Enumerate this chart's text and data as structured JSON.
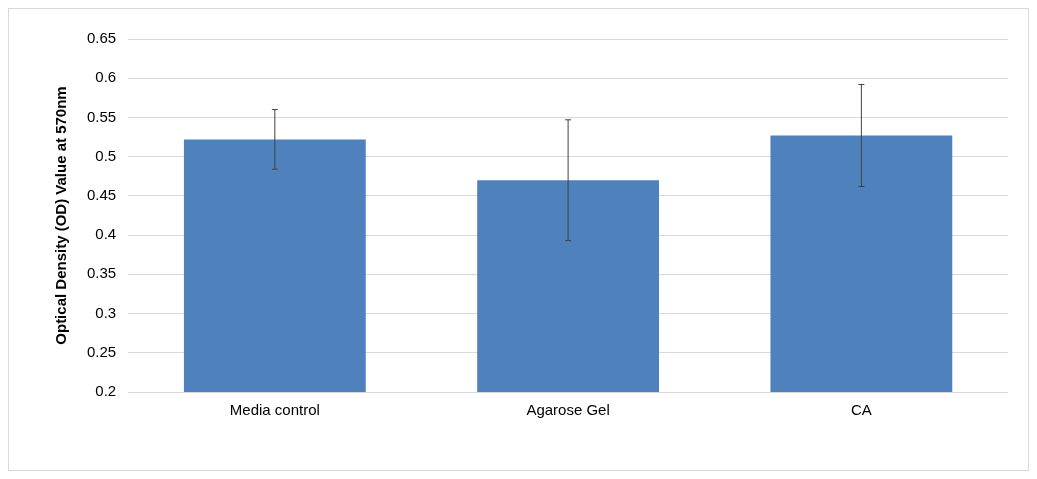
{
  "chart_data": {
    "type": "bar",
    "ylabel": "Optical Density (OD) Value at 570nm",
    "categories": [
      "Media control",
      "Agarose Gel",
      "CA"
    ],
    "values": [
      0.522,
      0.47,
      0.527
    ],
    "errors": [
      0.038,
      0.077,
      0.065
    ],
    "color": "#4f81bd",
    "ylim": [
      0.2,
      0.65
    ],
    "yticks": [
      0.2,
      0.25,
      0.3,
      0.35,
      0.4,
      0.45,
      0.5,
      0.55,
      0.6,
      0.65
    ],
    "grid": "y"
  }
}
